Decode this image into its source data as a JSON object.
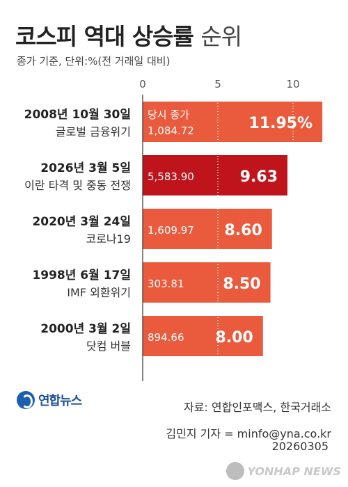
{
  "header": {
    "title_bold": "코스피 역대 상승률",
    "title_light": "순위",
    "subtitle": "종가 기준, 단위:%(전 거래일 대비)"
  },
  "chart_data": {
    "type": "bar",
    "orientation": "horizontal",
    "xlim": [
      0,
      12
    ],
    "ticks": [
      0,
      5,
      10
    ],
    "grid": false,
    "close_label": "당시 종가",
    "categories": [
      {
        "date": "2008년 10월 30일",
        "event": "글로벌 금융위기",
        "value": 11.95,
        "value_label": "11.95%",
        "close": "1,084.72"
      },
      {
        "date": "2026년 3월 5일",
        "event": "이란 타격 및 중동 전쟁",
        "value": 9.63,
        "value_label": "9.63",
        "close": "5,583.90"
      },
      {
        "date": "2020년 3월 24일",
        "event": "코로나19",
        "value": 8.6,
        "value_label": "8.60",
        "close": "1,609.97"
      },
      {
        "date": "1998년 6월 17일",
        "event": "IMF 외환위기",
        "value": 8.5,
        "value_label": "8.50",
        "close": "303.81"
      },
      {
        "date": "2000년 3월 2일",
        "event": "닷컴 버블",
        "value": 8.0,
        "value_label": "8.00",
        "close": "894.66"
      }
    ]
  },
  "colors": {
    "bar": "#ea5b3e",
    "highlight": "#c0141c",
    "label_bg": "#ffffff"
  },
  "footer": {
    "source": "자료: 연합인포맥스, 한국거래소",
    "reporter": "김민지 기자 = minfo@yna.co.kr",
    "date": "20260305",
    "logo": "연합뉴스",
    "watermark": "YONHAP NEWS"
  }
}
